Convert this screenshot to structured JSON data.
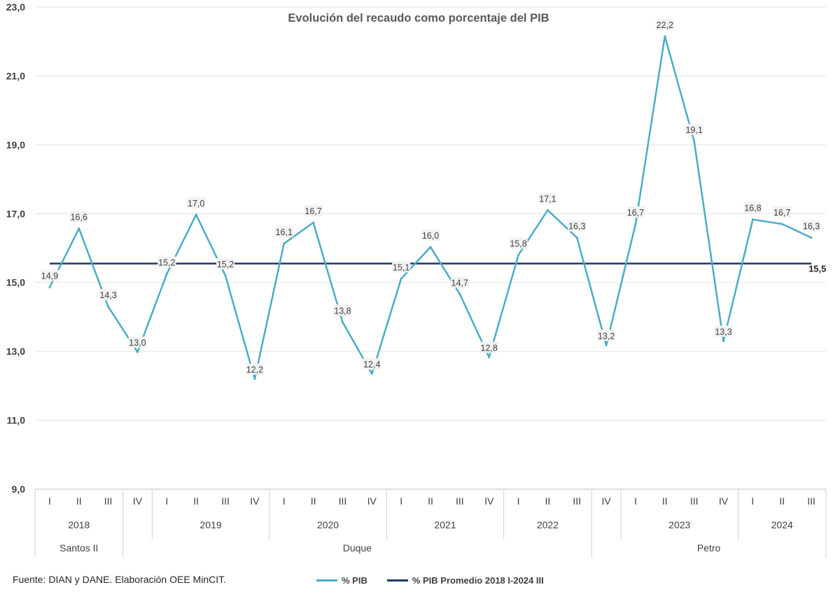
{
  "chart_data": {
    "type": "line",
    "title": "Evolución del recaudo como porcentaje del PIB",
    "ylim": [
      9,
      23
    ],
    "yticks": [
      "9,0",
      "11,0",
      "13,0",
      "15,0",
      "17,0",
      "19,0",
      "21,0",
      "23,0"
    ],
    "ytick_values": [
      9,
      11,
      13,
      15,
      17,
      19,
      21,
      23
    ],
    "grid": true,
    "legend_position": "bottom",
    "quarters": [
      "I",
      "II",
      "III",
      "IV",
      "I",
      "II",
      "III",
      "IV",
      "I",
      "II",
      "III",
      "IV",
      "I",
      "II",
      "III",
      "IV",
      "I",
      "II",
      "III",
      "IV",
      "I",
      "II",
      "III",
      "IV",
      "I",
      "II",
      "III"
    ],
    "years": [
      {
        "label": "2018",
        "span": 3
      },
      {
        "label": "",
        "span": 1
      },
      {
        "label": "2019",
        "span": 4
      },
      {
        "label": "2020",
        "span": 4
      },
      {
        "label": "2021",
        "span": 4
      },
      {
        "label": "2022",
        "span": 3
      },
      {
        "label": "",
        "span": 1
      },
      {
        "label": "2023",
        "span": 4
      },
      {
        "label": "2024",
        "span": 3
      }
    ],
    "governments": [
      {
        "label": "Santos II",
        "span": 3
      },
      {
        "label": "Duque",
        "span": 16
      },
      {
        "label": "Petro",
        "span": 8
      }
    ],
    "series": [
      {
        "name": "% PIB",
        "color": "#4BACC6",
        "values": [
          14.86,
          16.57,
          14.3,
          12.98,
          15.25,
          16.97,
          15.2,
          12.2,
          16.13,
          16.74,
          13.85,
          12.35,
          15.11,
          16.03,
          14.66,
          12.83,
          15.8,
          17.1,
          16.3,
          13.18,
          16.7,
          22.15,
          19.1,
          13.3,
          16.83,
          16.7,
          16.3
        ],
        "labels": [
          "14,9",
          "16,6",
          "14,3",
          "13,0",
          "15,2",
          "17,0",
          "15,2",
          "12,2",
          "16,1",
          "16,7",
          "13,8",
          "12,4",
          "15,1",
          "16,0",
          "14,7",
          "12,8",
          "15,8",
          "17,1",
          "16,3",
          "13,2",
          "16,7",
          "22,2",
          "19,1",
          "13,3",
          "16,8",
          "16,7",
          "16,3"
        ]
      },
      {
        "name": "% PIB Promedio 2018 I-2024 III",
        "color": "#1F3864",
        "value": 15.55,
        "label": "15,5"
      }
    ]
  },
  "footer": {
    "source": "Fuente: DIAN y DANE. Elaboración OEE MinCIT."
  }
}
